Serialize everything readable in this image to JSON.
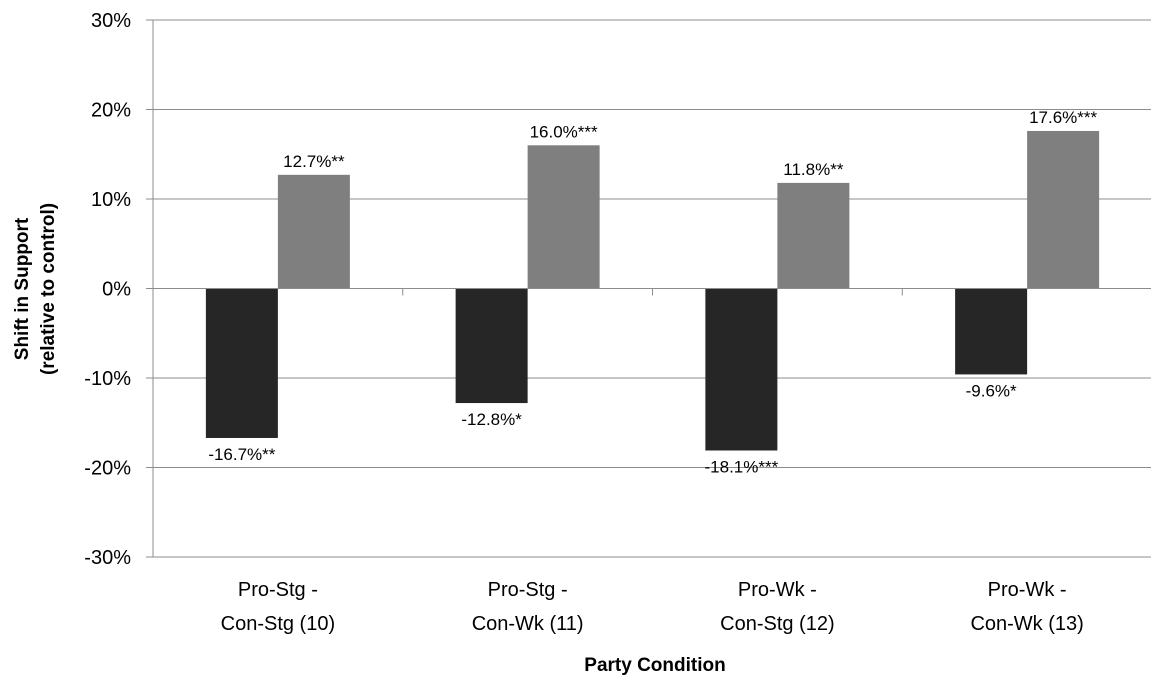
{
  "chart_data": {
    "type": "bar",
    "title": "",
    "xlabel": "Party Condition",
    "ylabel": [
      "Shift in Support",
      "(relative to control)"
    ],
    "ylim": [
      -30,
      30
    ],
    "y_ticks": [
      30,
      20,
      10,
      0,
      -10,
      -20,
      -30
    ],
    "y_tick_labels": [
      "30%",
      "20%",
      "10%",
      "0%",
      "-10%",
      "-20%",
      "-30%"
    ],
    "grid": true,
    "legend": "none",
    "categories": [
      [
        "Pro-Stg -",
        "Con-Stg (10)"
      ],
      [
        "Pro-Stg -",
        "Con-Wk (11)"
      ],
      [
        "Pro-Wk -",
        "Con-Stg (12)"
      ],
      [
        "Pro-Wk -",
        "Con-Wk (13)"
      ]
    ],
    "series": [
      {
        "color": "#262626",
        "values": [
          -16.7,
          -12.8,
          -18.1,
          -9.6
        ],
        "labels": [
          "-16.7%**",
          "-12.8%*",
          "-18.1%***",
          "-9.6%*"
        ]
      },
      {
        "color": "#7f7f7f",
        "values": [
          12.7,
          16.0,
          11.8,
          17.6
        ],
        "labels": [
          "12.7%**",
          "16.0%***",
          "11.8%**",
          "17.6%***"
        ]
      }
    ],
    "colors": {
      "grid": "#8c8c8c",
      "axis": "#8c8c8c"
    }
  }
}
